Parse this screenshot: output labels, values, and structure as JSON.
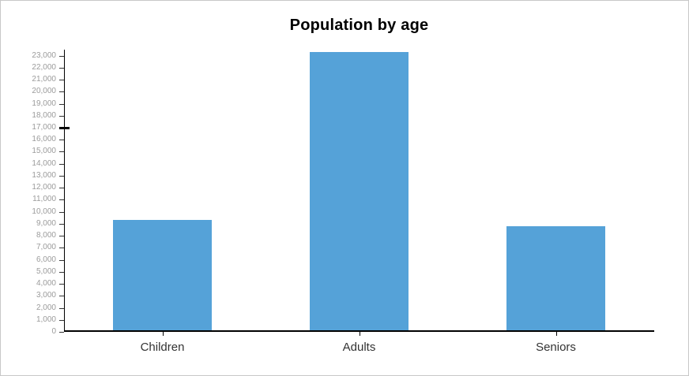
{
  "window": {
    "background": "#ffffff",
    "border_color": "#c8c8c8"
  },
  "chart_data": {
    "type": "bar",
    "title": "Population by age",
    "categories": [
      "Children",
      "Adults",
      "Seniors"
    ],
    "values": [
      9300,
      23300,
      8800
    ],
    "xlabel": "",
    "ylabel": "",
    "ylim": [
      0,
      23000
    ],
    "y_tick_step": 1000,
    "y_tick_labels": [
      "0",
      "1,000",
      "2,000",
      "3,000",
      "4,000",
      "5,000",
      "6,000",
      "7,000",
      "8,000",
      "9,000",
      "10,000",
      "11,000",
      "12,000",
      "13,000",
      "14,000",
      "15,000",
      "16,000",
      "17,000",
      "18,000",
      "19,000",
      "20,000",
      "21,000",
      "22,000",
      "23,000"
    ],
    "emphasized_tick_label": "17,000",
    "grid": false,
    "legend": false,
    "bar_color": "#55a2d8",
    "axis_color": "#000000",
    "y_tick_label_color": "#9b9b9b",
    "category_label_color": "#333333",
    "title_color": "#000000"
  }
}
